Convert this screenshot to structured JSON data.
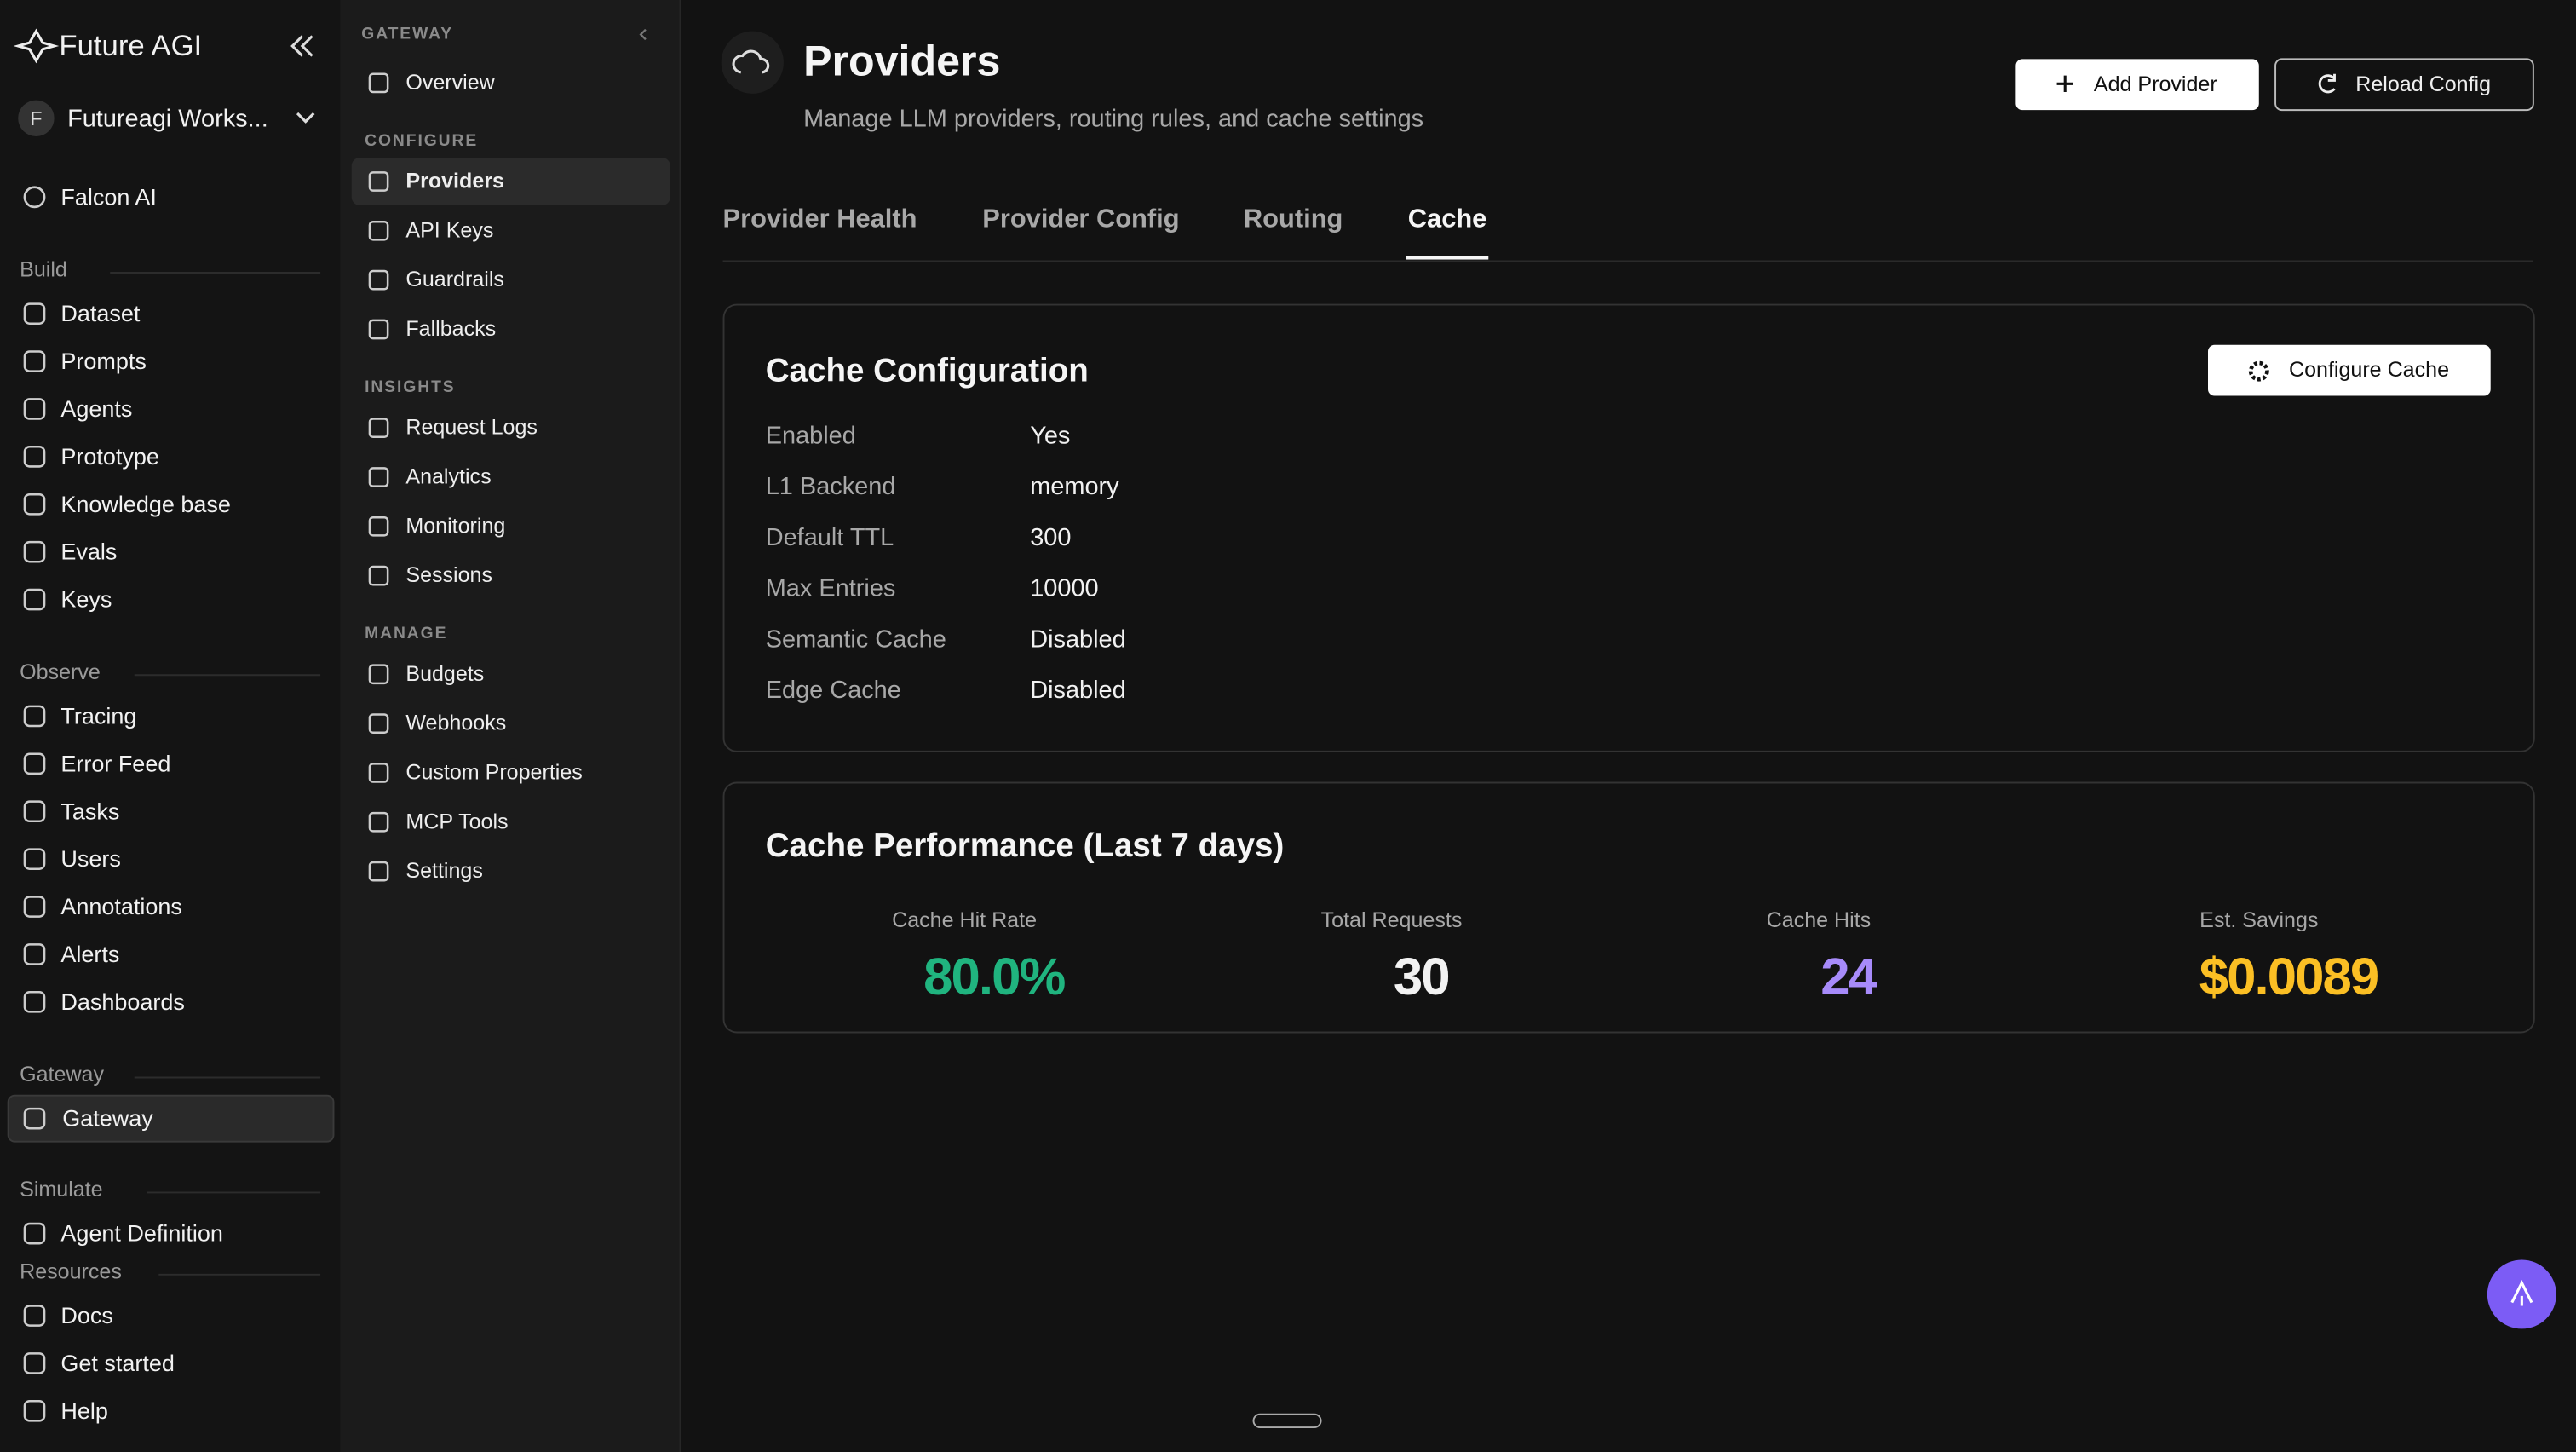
{
  "brand": "Future AGI",
  "workspace": {
    "initial": "F",
    "name": "Futureagi Works..."
  },
  "sidebar": {
    "top_item": "Falcon AI",
    "sections": [
      {
        "title": "Build",
        "items": [
          "Dataset",
          "Prompts",
          "Agents",
          "Prototype",
          "Knowledge base",
          "Evals",
          "Keys"
        ]
      },
      {
        "title": "Observe",
        "items": [
          "Tracing",
          "Error Feed",
          "Tasks",
          "Users",
          "Annotations",
          "Alerts",
          "Dashboards"
        ]
      },
      {
        "title": "Gateway",
        "items": [
          "Gateway"
        ]
      },
      {
        "title": "Simulate",
        "items": [
          "Agent Definition"
        ]
      },
      {
        "title": "Resources",
        "items": [
          "Docs",
          "Get started",
          "Help"
        ]
      }
    ]
  },
  "subnav": {
    "title": "GATEWAY",
    "overview": "Overview",
    "groups": [
      {
        "title": "CONFIGURE",
        "items": [
          "Providers",
          "API Keys",
          "Guardrails",
          "Fallbacks"
        ]
      },
      {
        "title": "INSIGHTS",
        "items": [
          "Request Logs",
          "Analytics",
          "Monitoring",
          "Sessions"
        ]
      },
      {
        "title": "MANAGE",
        "items": [
          "Budgets",
          "Webhooks",
          "Custom Properties",
          "MCP Tools",
          "Settings"
        ]
      }
    ]
  },
  "header": {
    "title": "Providers",
    "subtitle": "Manage LLM providers, routing rules, and cache settings",
    "buttons": [
      "Add Provider",
      "Reload Config"
    ]
  },
  "tabs": [
    "Provider Health",
    "Provider Config",
    "Routing",
    "Cache"
  ],
  "cache_config": {
    "title": "Cache Configuration",
    "button": "Configure Cache",
    "rows": [
      [
        "Enabled",
        "Yes"
      ],
      [
        "L1 Backend",
        "memory"
      ],
      [
        "Default TTL",
        "300"
      ],
      [
        "Max Entries",
        "10000"
      ],
      [
        "Semantic Cache",
        "Disabled"
      ],
      [
        "Edge Cache",
        "Disabled"
      ]
    ]
  },
  "cache_performance": {
    "title": "Cache Performance (Last 7 days)",
    "metrics": [
      {
        "label": "Cache Hit Rate",
        "value": "80.0%",
        "color": "#20b47f"
      },
      {
        "label": "Total Requests",
        "value": "30",
        "color": "#f2f2f2"
      },
      {
        "label": "Cache Hits",
        "value": "24",
        "color": "#a78bfa"
      },
      {
        "label": "Est. Savings",
        "value": "$0.0089",
        "color": "#fbbf24"
      }
    ]
  }
}
